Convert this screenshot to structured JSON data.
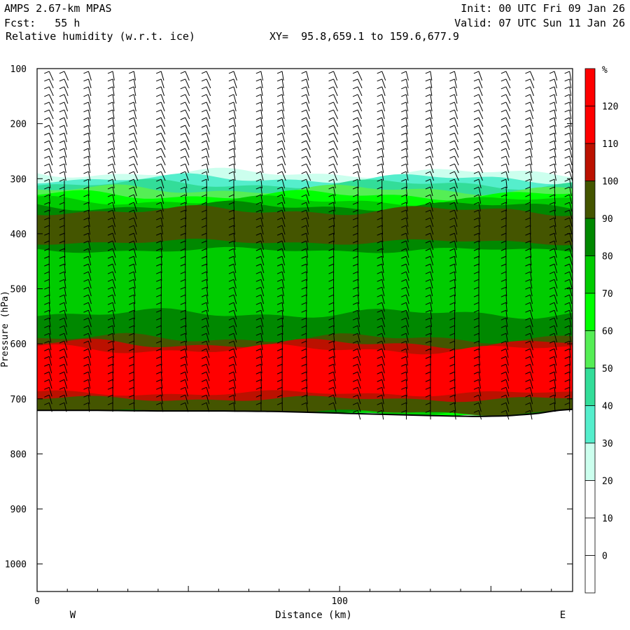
{
  "header": {
    "model": "AMPS 2.67-km MPAS",
    "forecast": "Fcst:   55 h",
    "field": "Relative humidity (w.r.t. ice)",
    "xy": "XY=  95.8,659.1 to 159.6,677.9",
    "init": "Init: 00 UTC Fri 09 Jan 26",
    "valid": "Valid: 07 UTC Sun 11 Jan 26"
  },
  "chart_data": {
    "type": "heatmap",
    "title": "Relative humidity (w.r.t. ice)",
    "xlabel": "Distance (km)",
    "ylabel": "Pressure (hPa)",
    "xlim": [
      0,
      177
    ],
    "ylim": [
      1050,
      100
    ],
    "x_ticks": [
      0,
      100
    ],
    "y_ticks": [
      100,
      200,
      300,
      400,
      500,
      600,
      700,
      800,
      900,
      1000
    ],
    "x_end_labels": {
      "left": "W",
      "right": "E"
    },
    "colorbar": {
      "unit": "%",
      "levels": [
        0,
        10,
        20,
        30,
        40,
        50,
        60,
        70,
        80,
        90,
        100,
        110,
        120
      ],
      "colors": [
        "#ffffff",
        "#ffffff",
        "#ffffff",
        "#ccffee",
        "#55eecc",
        "#33dd99",
        "#55ee55",
        "#00ff00",
        "#00cc00",
        "#008800",
        "#445500",
        "#bb1100",
        "#ff0000"
      ]
    },
    "terrain_surface_hPa": [
      [
        0,
        721
      ],
      [
        20,
        721
      ],
      [
        40,
        722
      ],
      [
        60,
        722
      ],
      [
        80,
        723
      ],
      [
        100,
        726
      ],
      [
        120,
        729
      ],
      [
        135,
        731
      ],
      [
        145,
        732
      ],
      [
        155,
        731
      ],
      [
        165,
        727
      ],
      [
        172,
        721
      ],
      [
        177,
        719
      ]
    ],
    "layers": [
      {
        "rh": 30,
        "top": 290,
        "bottom": 725
      },
      {
        "rh": 40,
        "top": 300,
        "bottom": 725
      },
      {
        "rh": 50,
        "top": 310,
        "bottom": 725
      },
      {
        "rh": 60,
        "top": 320,
        "bottom": 725
      },
      {
        "rh": 70,
        "top": 330,
        "bottom": 725
      },
      {
        "rh": 80,
        "top": 340,
        "bottom": 725
      },
      {
        "rh": 90,
        "top": 350,
        "bottom": 430
      },
      {
        "rh": 100,
        "top": 358,
        "bottom": 415
      },
      {
        "rh": 90,
        "top": 545,
        "bottom": 725
      },
      {
        "rh": 100,
        "top": 590,
        "bottom": 725
      },
      {
        "rh": 110,
        "top": 600,
        "bottom": 700
      },
      {
        "rh": 120,
        "top": 610,
        "bottom": 690
      }
    ],
    "wind_profile_x_km": [
      4,
      9,
      17,
      25,
      32,
      41,
      49,
      56,
      65,
      74,
      81,
      89,
      98,
      106,
      114,
      122,
      130,
      138,
      146,
      155,
      163,
      171,
      176
    ]
  }
}
